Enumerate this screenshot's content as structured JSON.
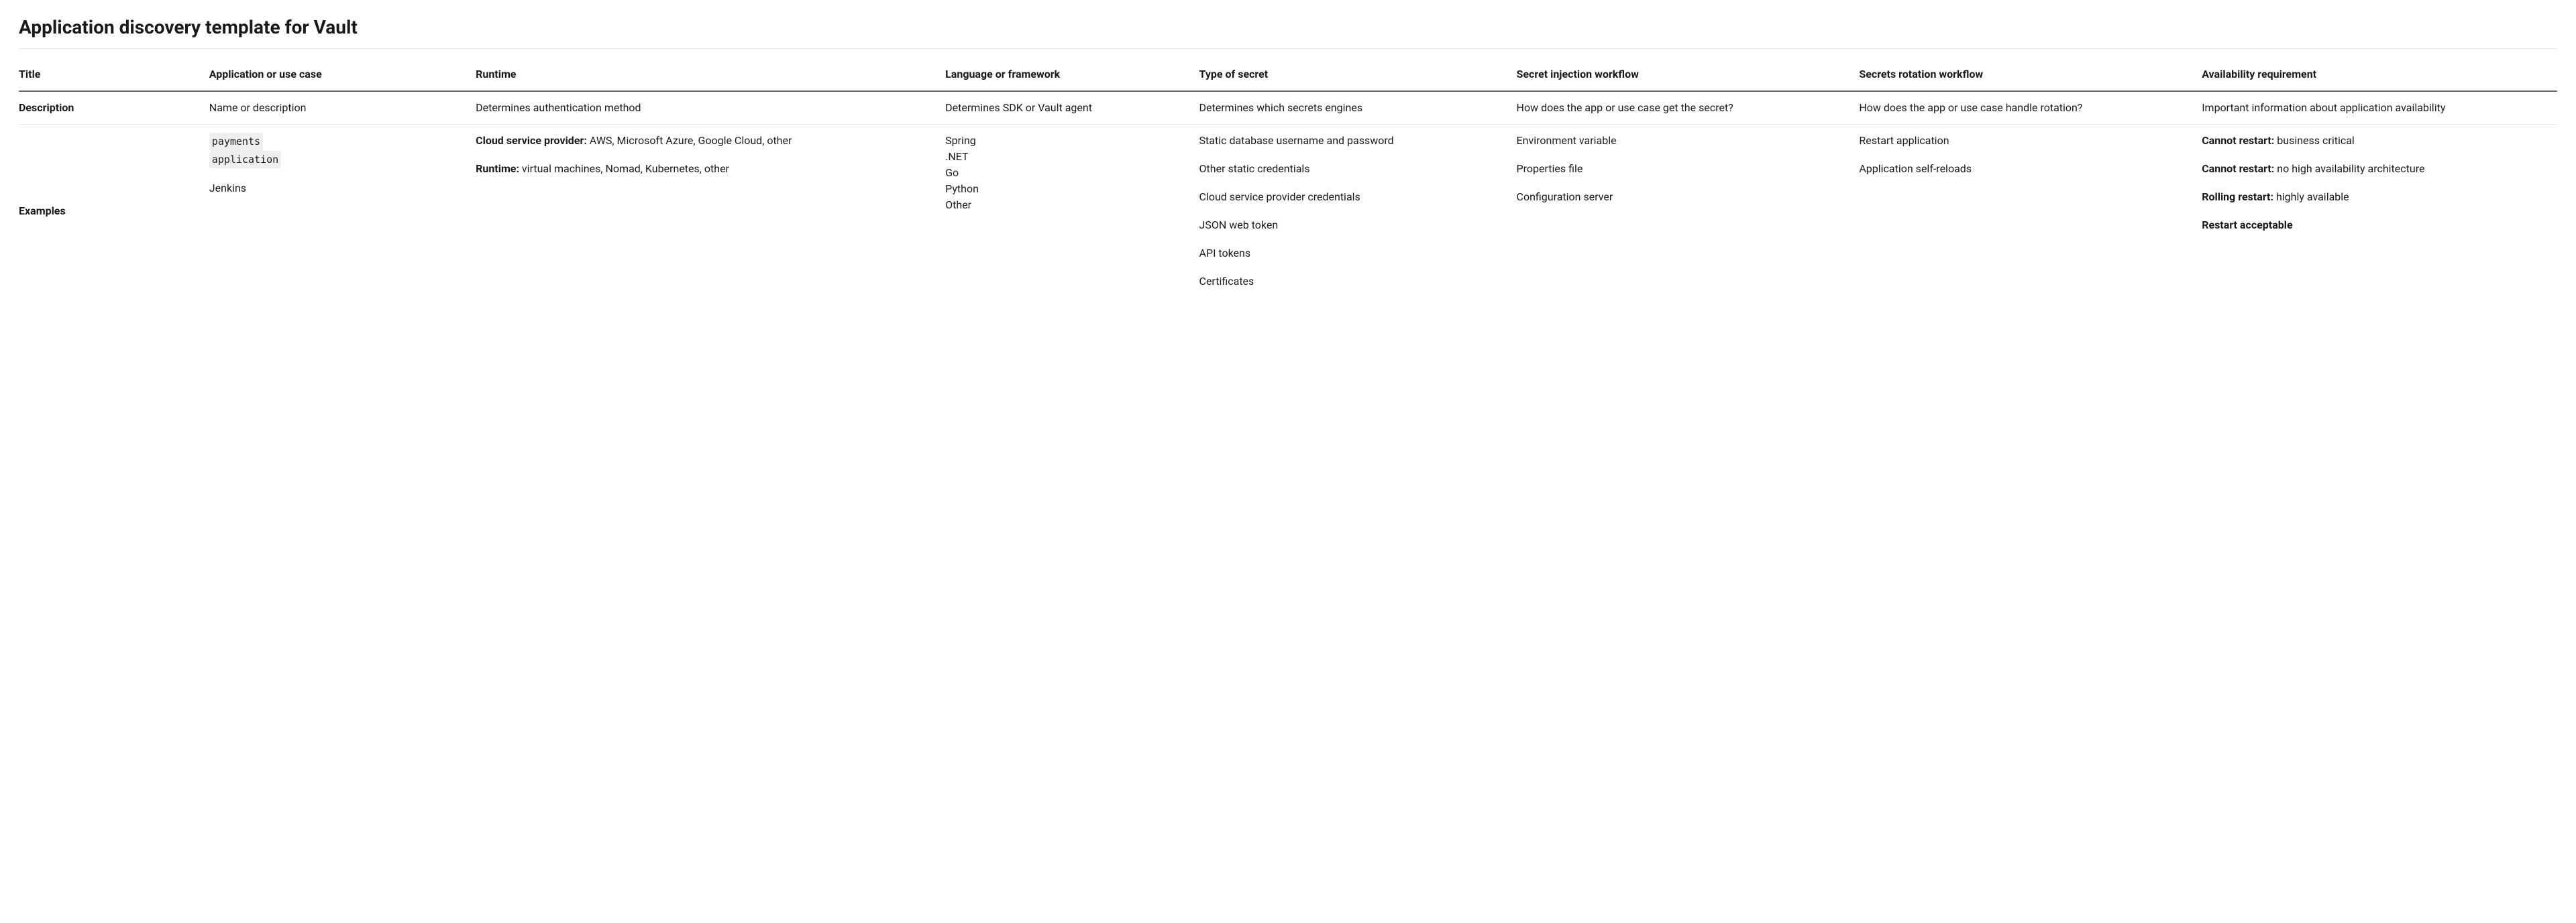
{
  "title": "Application discovery template for Vault",
  "columns": {
    "row_label": "Title",
    "application": "Application or use case",
    "runtime": "Runtime",
    "language": "Language or framework",
    "secret_type": "Type of secret",
    "injection": "Secret injection workflow",
    "rotation": "Secrets rotation workflow",
    "availability": "Availability requirement"
  },
  "description": {
    "row_label": "Description",
    "application": "Name or description",
    "runtime": "Determines authentication method",
    "language": "Determines SDK or Vault agent",
    "secret_type": "Determines which secrets engines",
    "injection": "How does the app or use case get the secret?",
    "rotation": "How does the app or use case handle rotation?",
    "availability": "Important information about application availability"
  },
  "examples": {
    "row_label": "Examples",
    "application": {
      "code1": "payments",
      "code2": "application",
      "p2": "Jenkins"
    },
    "runtime": {
      "csp_label": "Cloud service provider:",
      "csp_body": " AWS, Microsoft Azure, Google Cloud, other",
      "rt_label": "Runtime:",
      "rt_body": " virtual machines, Nomad, Kubernetes, other"
    },
    "language": {
      "l1": "Spring",
      "l2": ".NET",
      "l3": "Go",
      "l4": "Python",
      "l5": "Other"
    },
    "secret_type": {
      "p1": "Static database username and password",
      "p2": "Other static credentials",
      "p3": "Cloud service provider credentials",
      "p4": "JSON web token",
      "p5": "API tokens",
      "p6": "Certificates"
    },
    "injection": {
      "p1": "Environment variable",
      "p2": "Properties file",
      "p3": "Configuration server"
    },
    "rotation": {
      "p1": "Restart application",
      "p2": "Application self-reloads"
    },
    "availability": {
      "p1_label": "Cannot restart:",
      "p1_body": " business critical",
      "p2_label": "Cannot restart:",
      "p2_body": " no high availability architecture",
      "p3_label": "Rolling restart:",
      "p3_body": " highly available",
      "p4_label": "Restart acceptable"
    }
  }
}
